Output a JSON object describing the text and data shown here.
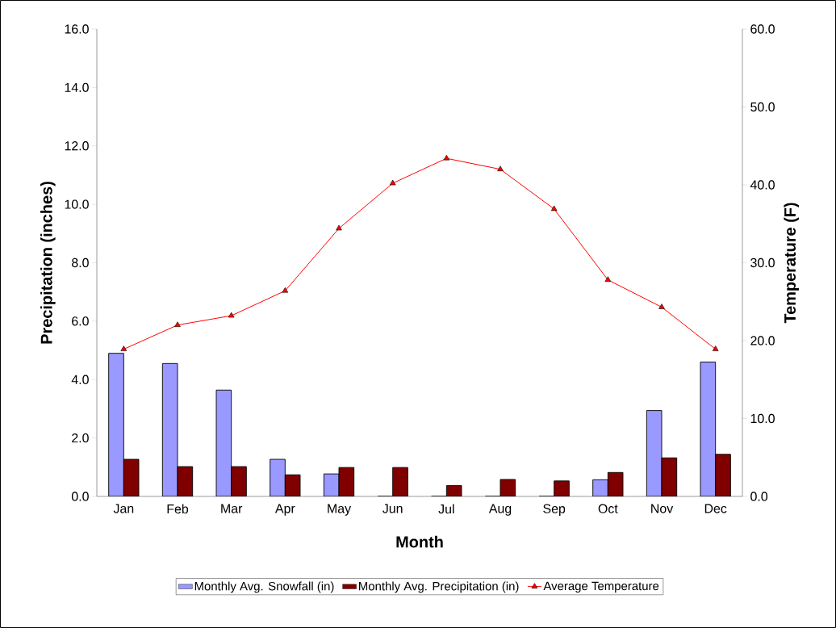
{
  "chart_data": {
    "type": "bar",
    "xlabel": "Month",
    "ylabel": "Precipitation (inches)",
    "y2label": "Temperature (F)",
    "categories": [
      "Jan",
      "Feb",
      "Mar",
      "Apr",
      "May",
      "Jun",
      "Jul",
      "Aug",
      "Sep",
      "Oct",
      "Nov",
      "Dec"
    ],
    "series": [
      {
        "name": "Monthly Avg. Snowfall (in)",
        "color": "#9999ff",
        "values": [
          4.9,
          4.55,
          3.64,
          1.27,
          0.77,
          0,
          0,
          0,
          0,
          0.57,
          2.94,
          4.6
        ]
      },
      {
        "name": "Monthly Avg. Precipitation (in)",
        "color": "#800000",
        "values": [
          1.27,
          1.02,
          1.02,
          0.74,
          0.99,
          0.99,
          0.37,
          0.58,
          0.53,
          0.82,
          1.32,
          1.44
        ]
      },
      {
        "name": "Average Temperature",
        "type": "line",
        "axis": "y2",
        "color": "#ff0000",
        "marker": "triangle",
        "values": [
          18.9,
          22.0,
          23.2,
          26.4,
          34.4,
          40.2,
          43.4,
          42.0,
          36.9,
          27.8,
          24.3,
          18.9
        ]
      }
    ],
    "ylim": [
      0,
      16
    ],
    "yticks": [
      {
        "value": 0,
        "label": "0.0"
      },
      {
        "value": 2,
        "label": "2.0"
      },
      {
        "value": 4,
        "label": "4.0"
      },
      {
        "value": 6,
        "label": "6.0"
      },
      {
        "value": 8,
        "label": "8.0"
      },
      {
        "value": 10,
        "label": "10.0"
      },
      {
        "value": 12,
        "label": "12.0"
      },
      {
        "value": 14,
        "label": "14.0"
      },
      {
        "value": 16,
        "label": "16.0"
      }
    ],
    "y2lim": [
      0,
      60
    ],
    "y2ticks": [
      {
        "value": 0,
        "label": "0.0"
      },
      {
        "value": 10,
        "label": "10.0"
      },
      {
        "value": 20,
        "label": "20.0"
      },
      {
        "value": 30,
        "label": "30.0"
      },
      {
        "value": 40,
        "label": "40.0"
      },
      {
        "value": 50,
        "label": "50.0"
      },
      {
        "value": 60,
        "label": "60.0"
      }
    ],
    "legend": "bottom",
    "grid": false
  }
}
